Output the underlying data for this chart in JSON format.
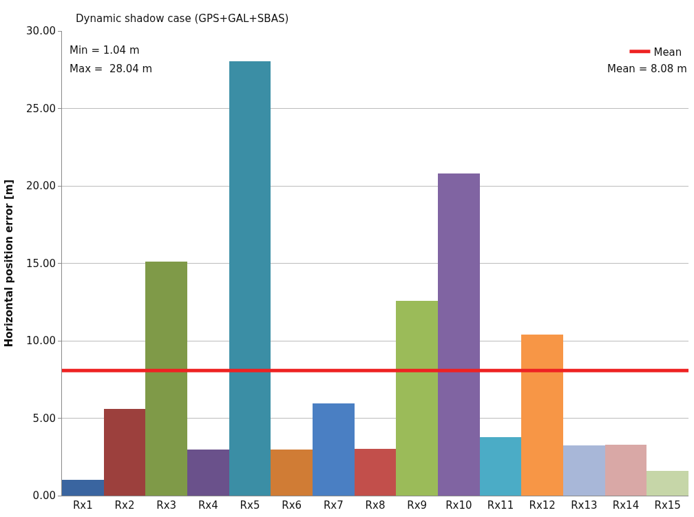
{
  "chart_data": {
    "type": "bar",
    "title": "Dynamic shadow case (GPS+GAL+SBAS)",
    "ylabel": "Horizontal position error [m]",
    "categories": [
      "Rx1",
      "Rx2",
      "Rx3",
      "Rx4",
      "Rx5",
      "Rx6",
      "Rx7",
      "Rx8",
      "Rx9",
      "Rx10",
      "Rx11",
      "Rx12",
      "Rx13",
      "Rx14",
      "Rx15"
    ],
    "values": [
      1.04,
      5.62,
      15.11,
      2.99,
      28.04,
      3.0,
      5.97,
      3.03,
      12.6,
      20.82,
      3.78,
      10.41,
      3.25,
      3.29,
      1.58
    ],
    "colors": [
      "#3a65a0",
      "#9c403d",
      "#7f9a48",
      "#6a518b",
      "#3b8ea5",
      "#d07c35",
      "#4a7fc3",
      "#c24f4b",
      "#9bbb59",
      "#8064a2",
      "#4bacc6",
      "#f79646",
      "#a8b7d8",
      "#d9a8a6",
      "#c6d6a8"
    ],
    "ylim": [
      0,
      30
    ],
    "yticks": [
      {
        "value": 0,
        "label": "0.00"
      },
      {
        "value": 5,
        "label": "5.00"
      },
      {
        "value": 10,
        "label": "10.00"
      },
      {
        "value": 15,
        "label": "15.00"
      },
      {
        "value": 20,
        "label": "20.00"
      },
      {
        "value": 25,
        "label": "25.00"
      },
      {
        "value": 30,
        "label": "30.00"
      }
    ],
    "grid": "y",
    "legend": "top right",
    "ref_lines": [
      {
        "axis": "y",
        "value": 8.08,
        "label": "Mean",
        "color": "#ee2222"
      }
    ],
    "annotations": [
      "Min = 1.04 m",
      "Max =  28.04 m",
      "Mean = 8.08 m"
    ]
  }
}
